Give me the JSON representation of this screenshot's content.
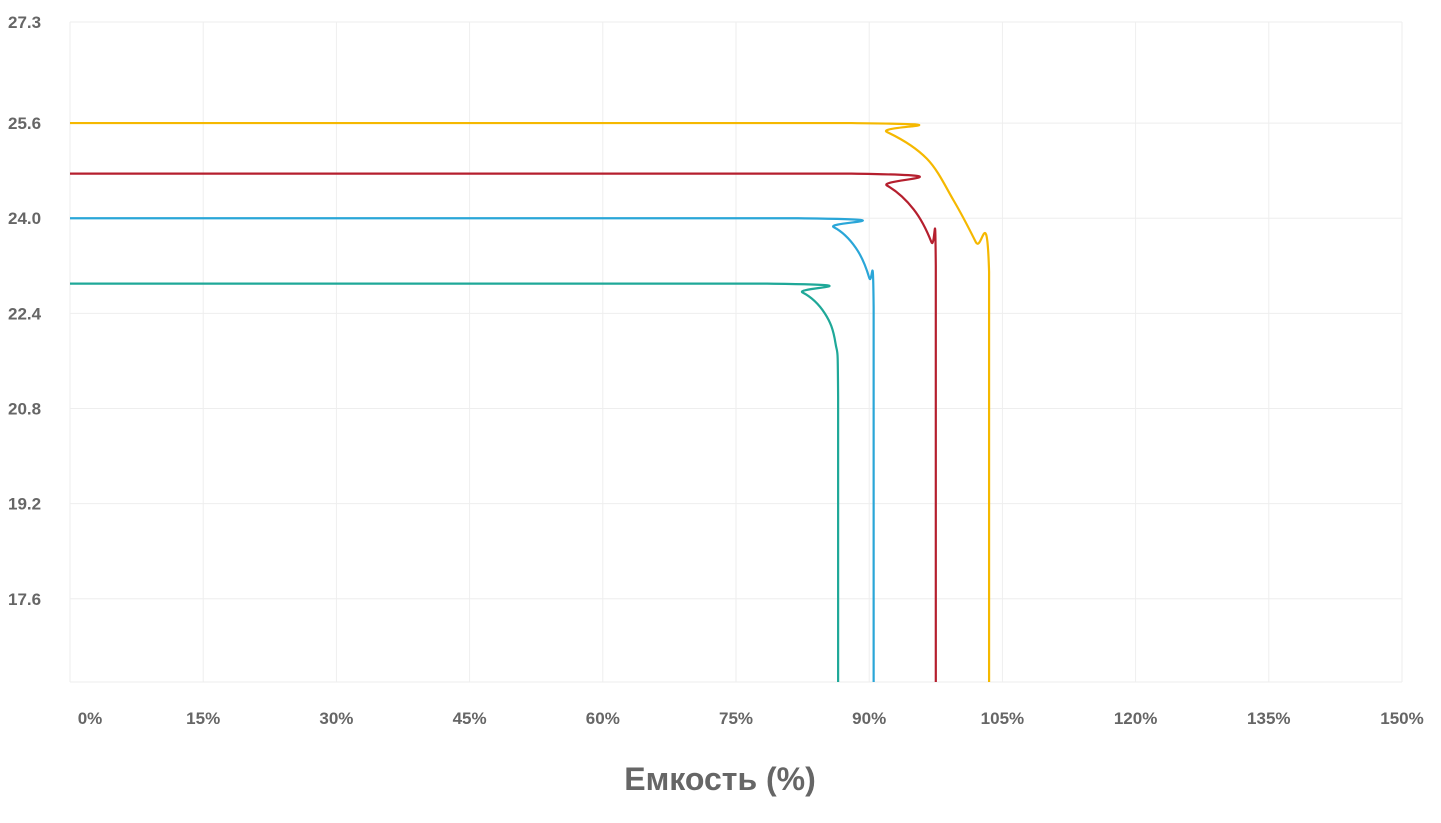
{
  "chart_data": {
    "type": "line",
    "title": "",
    "xlabel": "Емкость (%)",
    "ylabel": "",
    "xlim": [
      0,
      150
    ],
    "ylim": [
      16.2,
      27.3
    ],
    "x_ticks": [
      0,
      15,
      30,
      45,
      60,
      75,
      90,
      105,
      120,
      135,
      150
    ],
    "x_tick_labels": [
      "0%",
      "15%",
      "30%",
      "45%",
      "60%",
      "75%",
      "90%",
      "105%",
      "120%",
      "135%",
      "150%"
    ],
    "y_ticks": [
      27.3,
      25.6,
      24.0,
      22.4,
      20.8,
      19.2,
      17.6
    ],
    "y_tick_labels": [
      "27.3",
      "25.6",
      "24.0",
      "22.4",
      "20.8",
      "19.2",
      "17.6"
    ],
    "grid": true,
    "legend": "none",
    "series": [
      {
        "color": "#f5b800",
        "points": [
          [
            0,
            25.6
          ],
          [
            88,
            25.6
          ],
          [
            92,
            25.45
          ],
          [
            96.5,
            25.0
          ],
          [
            99.5,
            24.3
          ],
          [
            102,
            23.6
          ],
          [
            103.5,
            23.1
          ],
          [
            103.5,
            16.2
          ]
        ]
      },
      {
        "color": "#b51f2e",
        "points": [
          [
            0,
            24.75
          ],
          [
            88,
            24.75
          ],
          [
            92,
            24.55
          ],
          [
            95,
            24.15
          ],
          [
            97,
            23.6
          ],
          [
            97.5,
            23.2
          ],
          [
            97.5,
            16.2
          ]
        ]
      },
      {
        "color": "#2aa6d8",
        "points": [
          [
            0,
            24.0
          ],
          [
            82,
            24.0
          ],
          [
            86,
            23.85
          ],
          [
            88.5,
            23.5
          ],
          [
            90,
            23.0
          ],
          [
            90.5,
            22.5
          ],
          [
            90.5,
            16.2
          ]
        ]
      },
      {
        "color": "#1fa898",
        "points": [
          [
            0,
            22.9
          ],
          [
            78.5,
            22.9
          ],
          [
            82.5,
            22.75
          ],
          [
            85,
            22.4
          ],
          [
            86.2,
            21.9
          ],
          [
            86.5,
            21.0
          ],
          [
            86.5,
            16.2
          ]
        ]
      }
    ]
  }
}
